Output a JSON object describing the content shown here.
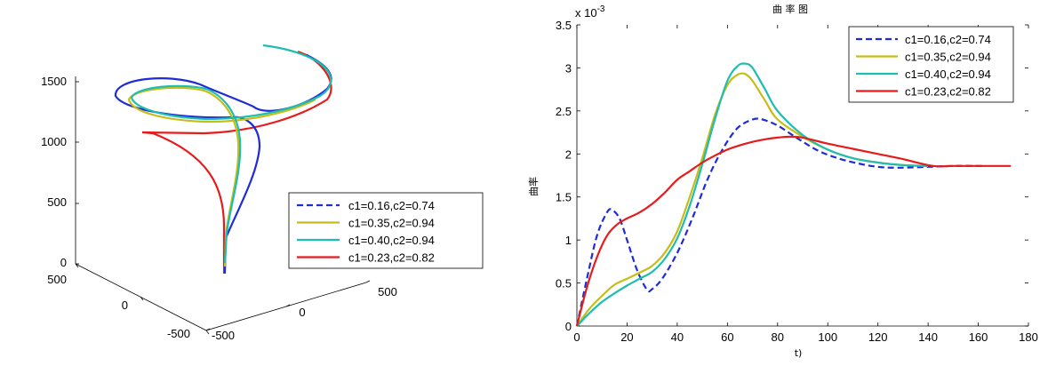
{
  "colors": {
    "s1": "#1f2bd9",
    "s2": "#c6bd17",
    "s3": "#1ebdb0",
    "s4": "#e61b1b"
  },
  "chart_data": [
    {
      "type": "line3d",
      "z_ticks": [
        "0",
        "500",
        "1000",
        "1500"
      ],
      "x_ticks": [
        "500",
        "0",
        "-500"
      ],
      "y_ticks": [
        "-500",
        "0",
        "500"
      ],
      "legend": {
        "placement": "lower-right",
        "entries": [
          {
            "label": "c1=0.16,c2=0.74",
            "style": "dashed",
            "color_key": "s1"
          },
          {
            "label": "c1=0.35,c2=0.94",
            "style": "solid",
            "color_key": "s2"
          },
          {
            "label": "c1=0.40,c2=0.94",
            "style": "solid",
            "color_key": "s3"
          },
          {
            "label": "c1=0.23,c2=0.82",
            "style": "solid",
            "color_key": "s4"
          }
        ]
      }
    },
    {
      "type": "line",
      "title": "曲 率 图",
      "xlabel": "t)",
      "ylabel": "曲率",
      "exponent_label": "x 10",
      "exponent_power": "-3",
      "xlim": [
        0,
        180
      ],
      "ylim": [
        0,
        3.5
      ],
      "x_ticks": [
        0,
        20,
        40,
        60,
        80,
        100,
        120,
        140,
        160,
        180
      ],
      "x_tick_labels": [
        "0",
        "20",
        "40",
        "60",
        "80",
        "100",
        "120",
        "140",
        "160",
        "180"
      ],
      "y_ticks": [
        0,
        0.5,
        1,
        1.5,
        2,
        2.5,
        3,
        3.5
      ],
      "y_tick_labels": [
        "0",
        "0.5",
        "1",
        "1.5",
        "2",
        "2.5",
        "3",
        "3.5"
      ],
      "legend_placement": "top-right",
      "series": [
        {
          "name": "c1=0.16,c2=0.74",
          "style": "dashed",
          "color_key": "s1",
          "x": [
            0,
            4,
            8,
            12,
            14,
            17,
            20,
            24,
            28,
            30,
            34,
            40,
            46,
            52,
            58,
            64,
            70,
            74,
            80,
            88,
            96,
            104,
            112,
            120,
            128,
            140,
            150,
            162
          ],
          "y": [
            0,
            0.55,
            1.05,
            1.32,
            1.35,
            1.25,
            1.0,
            0.65,
            0.42,
            0.43,
            0.55,
            0.85,
            1.25,
            1.7,
            2.05,
            2.3,
            2.4,
            2.4,
            2.33,
            2.18,
            2.04,
            1.95,
            1.89,
            1.85,
            1.84,
            1.85,
            1.86,
            1.86
          ]
        },
        {
          "name": "c1=0.35,c2=0.94",
          "style": "solid",
          "color_key": "s2",
          "x": [
            0,
            5,
            10,
            15,
            20,
            25,
            30,
            35,
            40,
            45,
            50,
            55,
            60,
            64,
            67,
            70,
            75,
            80,
            90,
            100,
            110,
            120,
            130,
            140
          ],
          "y": [
            0,
            0.2,
            0.35,
            0.48,
            0.55,
            0.62,
            0.7,
            0.85,
            1.1,
            1.5,
            1.95,
            2.45,
            2.8,
            2.92,
            2.93,
            2.85,
            2.62,
            2.4,
            2.2,
            2.05,
            1.95,
            1.9,
            1.87,
            1.86
          ]
        },
        {
          "name": "c1=0.40,c2=0.94",
          "style": "solid",
          "color_key": "s3",
          "x": [
            0,
            5,
            10,
            15,
            20,
            25,
            30,
            35,
            40,
            45,
            50,
            55,
            60,
            64,
            67,
            70,
            75,
            80,
            90,
            100,
            110,
            120,
            130,
            140
          ],
          "y": [
            0,
            0.15,
            0.28,
            0.38,
            0.47,
            0.55,
            0.63,
            0.78,
            1.02,
            1.4,
            1.88,
            2.4,
            2.85,
            3.02,
            3.05,
            3.0,
            2.75,
            2.5,
            2.22,
            2.05,
            1.95,
            1.9,
            1.87,
            1.86
          ]
        },
        {
          "name": "c1=0.23,c2=0.82",
          "style": "solid",
          "color_key": "s4",
          "x": [
            0,
            4,
            8,
            12,
            16,
            20,
            25,
            30,
            35,
            40,
            45,
            50,
            55,
            60,
            65,
            70,
            75,
            80,
            85,
            90,
            100,
            110,
            120,
            130,
            142,
            150,
            160,
            173
          ],
          "y": [
            0,
            0.45,
            0.8,
            1.05,
            1.18,
            1.25,
            1.32,
            1.42,
            1.55,
            1.7,
            1.8,
            1.9,
            1.98,
            2.05,
            2.1,
            2.14,
            2.17,
            2.19,
            2.2,
            2.19,
            2.12,
            2.06,
            2.0,
            1.94,
            1.86,
            1.86,
            1.86,
            1.86
          ]
        }
      ]
    }
  ]
}
